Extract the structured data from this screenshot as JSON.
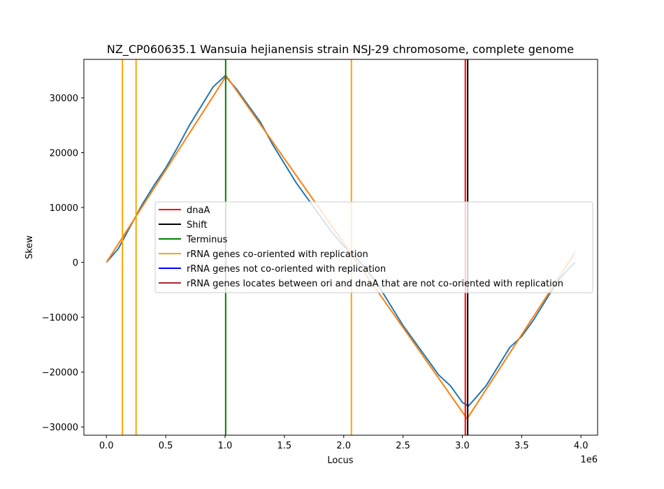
{
  "chart_data": {
    "type": "line",
    "title": "NZ_CP060635.1 Wansuia hejianensis strain NSJ-29 chromosome, complete genome",
    "xlabel": "Locus",
    "ylabel": "Skew",
    "x_offset_label": "1e6",
    "xlim": [
      -190000,
      4140000
    ],
    "ylim": [
      -31500,
      37000
    ],
    "xticks": [
      0,
      500000,
      1000000,
      1500000,
      2000000,
      2500000,
      3000000,
      3500000,
      4000000
    ],
    "xtick_labels": [
      "0.0",
      "0.5",
      "1.0",
      "1.5",
      "2.0",
      "2.5",
      "3.0",
      "3.5",
      "4.0"
    ],
    "yticks": [
      -30000,
      -20000,
      -10000,
      0,
      10000,
      20000,
      30000
    ],
    "ytick_labels": [
      "−30000",
      "−20000",
      "−10000",
      "0",
      "10000",
      "20000",
      "30000"
    ],
    "grid": false,
    "legend_position": "center-right",
    "series": [
      {
        "color": "#1f77b4",
        "points": [
          [
            0,
            0
          ],
          [
            100000,
            2500
          ],
          [
            200000,
            6500
          ],
          [
            300000,
            10500
          ],
          [
            400000,
            14000
          ],
          [
            500000,
            17200
          ],
          [
            600000,
            21000
          ],
          [
            700000,
            25000
          ],
          [
            800000,
            28500
          ],
          [
            900000,
            32000
          ],
          [
            1000000,
            34000
          ],
          [
            1100000,
            31500
          ],
          [
            1200000,
            28500
          ],
          [
            1300000,
            25500
          ],
          [
            1400000,
            21500
          ],
          [
            1500000,
            18000
          ],
          [
            1600000,
            14500
          ],
          [
            1700000,
            11500
          ],
          [
            1800000,
            8500
          ],
          [
            1900000,
            5500
          ],
          [
            2000000,
            3000
          ],
          [
            2100000,
            1000
          ],
          [
            2200000,
            -1500
          ],
          [
            2300000,
            -4500
          ],
          [
            2400000,
            -8000
          ],
          [
            2500000,
            -11500
          ],
          [
            2600000,
            -14500
          ],
          [
            2700000,
            -17500
          ],
          [
            2800000,
            -20500
          ],
          [
            2900000,
            -22500
          ],
          [
            3000000,
            -25500
          ],
          [
            3050000,
            -26200
          ],
          [
            3100000,
            -25000
          ],
          [
            3200000,
            -22500
          ],
          [
            3300000,
            -19000
          ],
          [
            3400000,
            -15500
          ],
          [
            3500000,
            -13500
          ],
          [
            3600000,
            -10500
          ],
          [
            3700000,
            -7000
          ],
          [
            3800000,
            -3500
          ],
          [
            3880000,
            -1500
          ],
          [
            3950000,
            0
          ]
        ]
      },
      {
        "color": "#ff7f0e",
        "points": [
          [
            0,
            0
          ],
          [
            1010000,
            34000
          ],
          [
            3040000,
            -28500
          ],
          [
            3950000,
            1800
          ]
        ]
      }
    ],
    "vlines": [
      {
        "x": 135000,
        "color": "#ffa500"
      },
      {
        "x": 250000,
        "color": "#ffa500"
      },
      {
        "x": 2065000,
        "color": "#ffa500"
      },
      {
        "x": 1005000,
        "color": "#008000"
      },
      {
        "x": 3025000,
        "color": "#ff0000"
      },
      {
        "x": 3045000,
        "color": "#000000"
      }
    ],
    "legend": [
      {
        "label": "dnaA",
        "color": "#ff0000"
      },
      {
        "label": "Shift",
        "color": "#000000"
      },
      {
        "label": "Terminus",
        "color": "#008000"
      },
      {
        "label": "rRNA genes co-oriented with replication",
        "color": "#ffa500"
      },
      {
        "label": "rRNA genes not co-oriented with replication",
        "color": "#0000ff"
      },
      {
        "label": "rRNA genes locates between ori and dnaA that are not co-oriented with replication",
        "color": "#a52a2a"
      }
    ]
  }
}
